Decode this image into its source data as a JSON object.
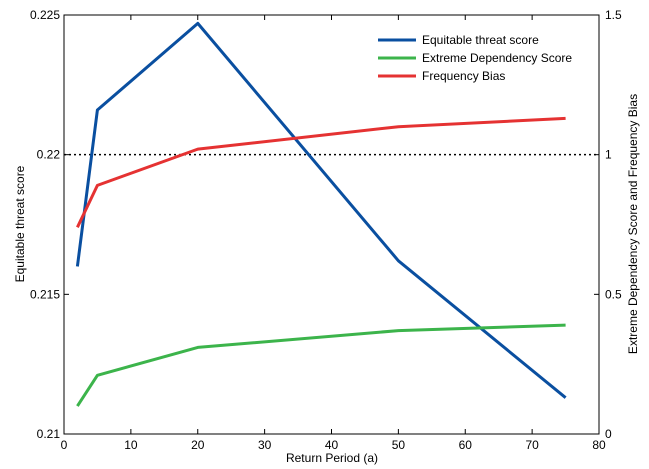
{
  "chart_data": {
    "type": "line",
    "xlabel": "Return Period (a)",
    "ylabel_left": "Equitable threat score",
    "ylabel_right": "Extreme Dependency Score and Frequency Bias",
    "xlim": [
      0,
      80
    ],
    "xticks": [
      0,
      10,
      20,
      30,
      40,
      50,
      60,
      70,
      80
    ],
    "xtick_labels": [
      "0",
      "10",
      "20",
      "30",
      "40",
      "50",
      "60",
      "70",
      "80"
    ],
    "ylim_left": [
      0.21,
      0.225
    ],
    "yticks_left": [
      0.21,
      0.215,
      0.22,
      0.225
    ],
    "ytick_labels_left": [
      "0.21",
      "0.215",
      "0.22",
      "0.225"
    ],
    "ylim_right": [
      0,
      1.5
    ],
    "yticks_right": [
      0,
      0.5,
      1,
      1.5
    ],
    "ytick_labels_right": [
      "0",
      "0.5",
      "1",
      "1.5"
    ],
    "grid": false,
    "legend_position": "top-right",
    "reference_line": {
      "axis": "right",
      "y": 1,
      "style": "dotted",
      "color": "#000000"
    },
    "series": [
      {
        "name": "Equitable threat score",
        "axis": "left",
        "color": "#0a4fa0",
        "x": [
          2,
          5,
          20,
          50,
          75
        ],
        "y": [
          0.216,
          0.2216,
          0.2247,
          0.2162,
          0.2113
        ]
      },
      {
        "name": "Extreme Dependency Score",
        "axis": "right",
        "color": "#3cb44b",
        "x": [
          2,
          5,
          20,
          50,
          75
        ],
        "y": [
          0.1,
          0.21,
          0.31,
          0.37,
          0.39
        ]
      },
      {
        "name": "Frequency Bias",
        "axis": "right",
        "color": "#e53232",
        "x": [
          2,
          5,
          20,
          50,
          75
        ],
        "y": [
          0.74,
          0.89,
          1.02,
          1.1,
          1.13
        ]
      }
    ]
  }
}
